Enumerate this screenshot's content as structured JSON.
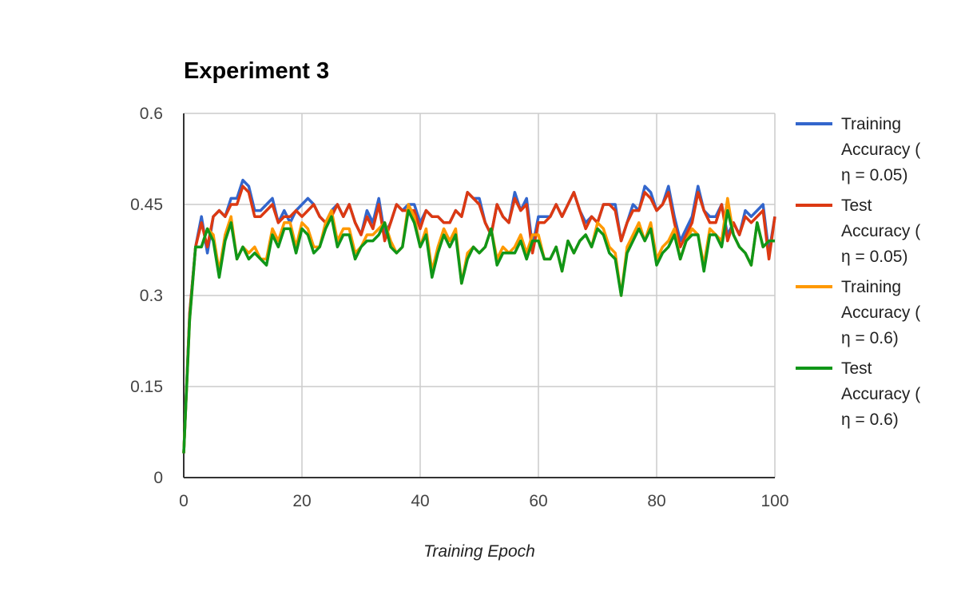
{
  "chart_data": {
    "type": "line",
    "title": "Experiment 3",
    "xlabel": "Training Epoch",
    "ylabel": "",
    "xlim": [
      0,
      100
    ],
    "ylim": [
      0,
      0.6
    ],
    "xticks": [
      "0",
      "20",
      "40",
      "60",
      "80",
      "100"
    ],
    "yticks": [
      "0",
      "0.15",
      "0.3",
      "0.45",
      "0.6"
    ],
    "grid": true,
    "legend_position": "right",
    "x": [
      0,
      1,
      2,
      3,
      4,
      5,
      6,
      7,
      8,
      9,
      10,
      11,
      12,
      13,
      14,
      15,
      16,
      17,
      18,
      19,
      20,
      21,
      22,
      23,
      24,
      25,
      26,
      27,
      28,
      29,
      30,
      31,
      32,
      33,
      34,
      35,
      36,
      37,
      38,
      39,
      40,
      41,
      42,
      43,
      44,
      45,
      46,
      47,
      48,
      49,
      50,
      51,
      52,
      53,
      54,
      55,
      56,
      57,
      58,
      59,
      60,
      61,
      62,
      63,
      64,
      65,
      66,
      67,
      68,
      69,
      70,
      71,
      72,
      73,
      74,
      75,
      76,
      77,
      78,
      79,
      80,
      81,
      82,
      83,
      84,
      85,
      86,
      87,
      88,
      89,
      90,
      91,
      92,
      93,
      94,
      95,
      96,
      97,
      98,
      99,
      100
    ],
    "series": [
      {
        "name": "Training Accuracy ( η = 0.05)",
        "legend_lines": [
          "Training",
          "Accuracy (",
          "η = 0.05)"
        ],
        "color": "#3366cc",
        "values": [
          0.04,
          0.27,
          0.38,
          0.43,
          0.37,
          0.43,
          0.44,
          0.43,
          0.46,
          0.46,
          0.49,
          0.48,
          0.44,
          0.44,
          0.45,
          0.46,
          0.42,
          0.44,
          0.42,
          0.44,
          0.45,
          0.46,
          0.45,
          0.43,
          0.42,
          0.44,
          0.45,
          0.43,
          0.45,
          0.42,
          0.4,
          0.44,
          0.42,
          0.46,
          0.4,
          0.42,
          0.45,
          0.44,
          0.45,
          0.45,
          0.42,
          0.44,
          0.43,
          0.43,
          0.42,
          0.42,
          0.44,
          0.43,
          0.47,
          0.46,
          0.46,
          0.42,
          0.4,
          0.45,
          0.43,
          0.42,
          0.47,
          0.44,
          0.46,
          0.38,
          0.43,
          0.43,
          0.43,
          0.45,
          0.43,
          0.45,
          0.47,
          0.44,
          0.42,
          0.43,
          0.42,
          0.45,
          0.45,
          0.45,
          0.39,
          0.42,
          0.45,
          0.44,
          0.48,
          0.47,
          0.44,
          0.45,
          0.48,
          0.43,
          0.39,
          0.41,
          0.43,
          0.48,
          0.44,
          0.43,
          0.43,
          0.45,
          0.4,
          0.42,
          0.4,
          0.44,
          0.43,
          0.44,
          0.45,
          0.37,
          0.43
        ]
      },
      {
        "name": "Test Accuracy ( η = 0.05)",
        "legend_lines": [
          "Test",
          "Accuracy (",
          "η = 0.05)"
        ],
        "color": "#dc3912",
        "values": [
          0.04,
          0.27,
          0.38,
          0.42,
          0.38,
          0.43,
          0.44,
          0.43,
          0.45,
          0.45,
          0.48,
          0.47,
          0.43,
          0.43,
          0.44,
          0.45,
          0.42,
          0.43,
          0.43,
          0.44,
          0.43,
          0.44,
          0.45,
          0.43,
          0.42,
          0.43,
          0.45,
          0.43,
          0.45,
          0.42,
          0.4,
          0.43,
          0.41,
          0.45,
          0.39,
          0.42,
          0.45,
          0.44,
          0.44,
          0.44,
          0.41,
          0.44,
          0.43,
          0.43,
          0.42,
          0.42,
          0.44,
          0.43,
          0.47,
          0.46,
          0.45,
          0.42,
          0.4,
          0.45,
          0.43,
          0.42,
          0.46,
          0.44,
          0.45,
          0.37,
          0.42,
          0.42,
          0.43,
          0.45,
          0.43,
          0.45,
          0.47,
          0.44,
          0.41,
          0.43,
          0.42,
          0.45,
          0.45,
          0.44,
          0.39,
          0.42,
          0.44,
          0.44,
          0.47,
          0.46,
          0.44,
          0.45,
          0.47,
          0.42,
          0.38,
          0.4,
          0.42,
          0.47,
          0.44,
          0.42,
          0.42,
          0.45,
          0.39,
          0.42,
          0.4,
          0.43,
          0.42,
          0.43,
          0.44,
          0.36,
          0.43
        ]
      },
      {
        "name": "Training Accuracy ( η = 0.6)",
        "legend_lines": [
          "Training",
          "Accuracy (",
          "η = 0.6)"
        ],
        "color": "#ff9900",
        "values": [
          0.04,
          0.26,
          0.38,
          0.38,
          0.41,
          0.4,
          0.34,
          0.4,
          0.43,
          0.36,
          0.38,
          0.37,
          0.38,
          0.36,
          0.36,
          0.41,
          0.39,
          0.42,
          0.42,
          0.38,
          0.42,
          0.41,
          0.38,
          0.38,
          0.42,
          0.44,
          0.39,
          0.41,
          0.41,
          0.37,
          0.38,
          0.4,
          0.4,
          0.41,
          0.42,
          0.39,
          0.37,
          0.38,
          0.45,
          0.43,
          0.38,
          0.41,
          0.34,
          0.38,
          0.41,
          0.39,
          0.41,
          0.32,
          0.37,
          0.38,
          0.37,
          0.38,
          0.41,
          0.36,
          0.38,
          0.37,
          0.38,
          0.4,
          0.37,
          0.4,
          0.4,
          0.36,
          0.36,
          0.38,
          0.34,
          0.39,
          0.37,
          0.39,
          0.4,
          0.38,
          0.42,
          0.41,
          0.38,
          0.37,
          0.3,
          0.38,
          0.4,
          0.42,
          0.39,
          0.42,
          0.36,
          0.38,
          0.39,
          0.41,
          0.36,
          0.39,
          0.41,
          0.4,
          0.35,
          0.41,
          0.4,
          0.39,
          0.46,
          0.4,
          0.38,
          0.37,
          0.35,
          0.42,
          0.38,
          0.39,
          0.39
        ]
      },
      {
        "name": "Test Accuracy ( η = 0.6)",
        "legend_lines": [
          "Test",
          "Accuracy (",
          "η = 0.6)"
        ],
        "color": "#109618",
        "values": [
          0.04,
          0.26,
          0.38,
          0.38,
          0.41,
          0.39,
          0.33,
          0.39,
          0.42,
          0.36,
          0.38,
          0.36,
          0.37,
          0.36,
          0.35,
          0.4,
          0.38,
          0.41,
          0.41,
          0.37,
          0.41,
          0.4,
          0.37,
          0.38,
          0.41,
          0.43,
          0.38,
          0.4,
          0.4,
          0.36,
          0.38,
          0.39,
          0.39,
          0.4,
          0.42,
          0.38,
          0.37,
          0.38,
          0.44,
          0.42,
          0.38,
          0.4,
          0.33,
          0.37,
          0.4,
          0.38,
          0.4,
          0.32,
          0.36,
          0.38,
          0.37,
          0.38,
          0.41,
          0.35,
          0.37,
          0.37,
          0.37,
          0.39,
          0.36,
          0.39,
          0.39,
          0.36,
          0.36,
          0.38,
          0.34,
          0.39,
          0.37,
          0.39,
          0.4,
          0.38,
          0.41,
          0.4,
          0.37,
          0.36,
          0.3,
          0.37,
          0.39,
          0.41,
          0.39,
          0.41,
          0.35,
          0.37,
          0.38,
          0.4,
          0.36,
          0.39,
          0.4,
          0.4,
          0.34,
          0.4,
          0.4,
          0.38,
          0.44,
          0.4,
          0.38,
          0.37,
          0.35,
          0.42,
          0.38,
          0.39,
          0.39
        ]
      }
    ]
  }
}
